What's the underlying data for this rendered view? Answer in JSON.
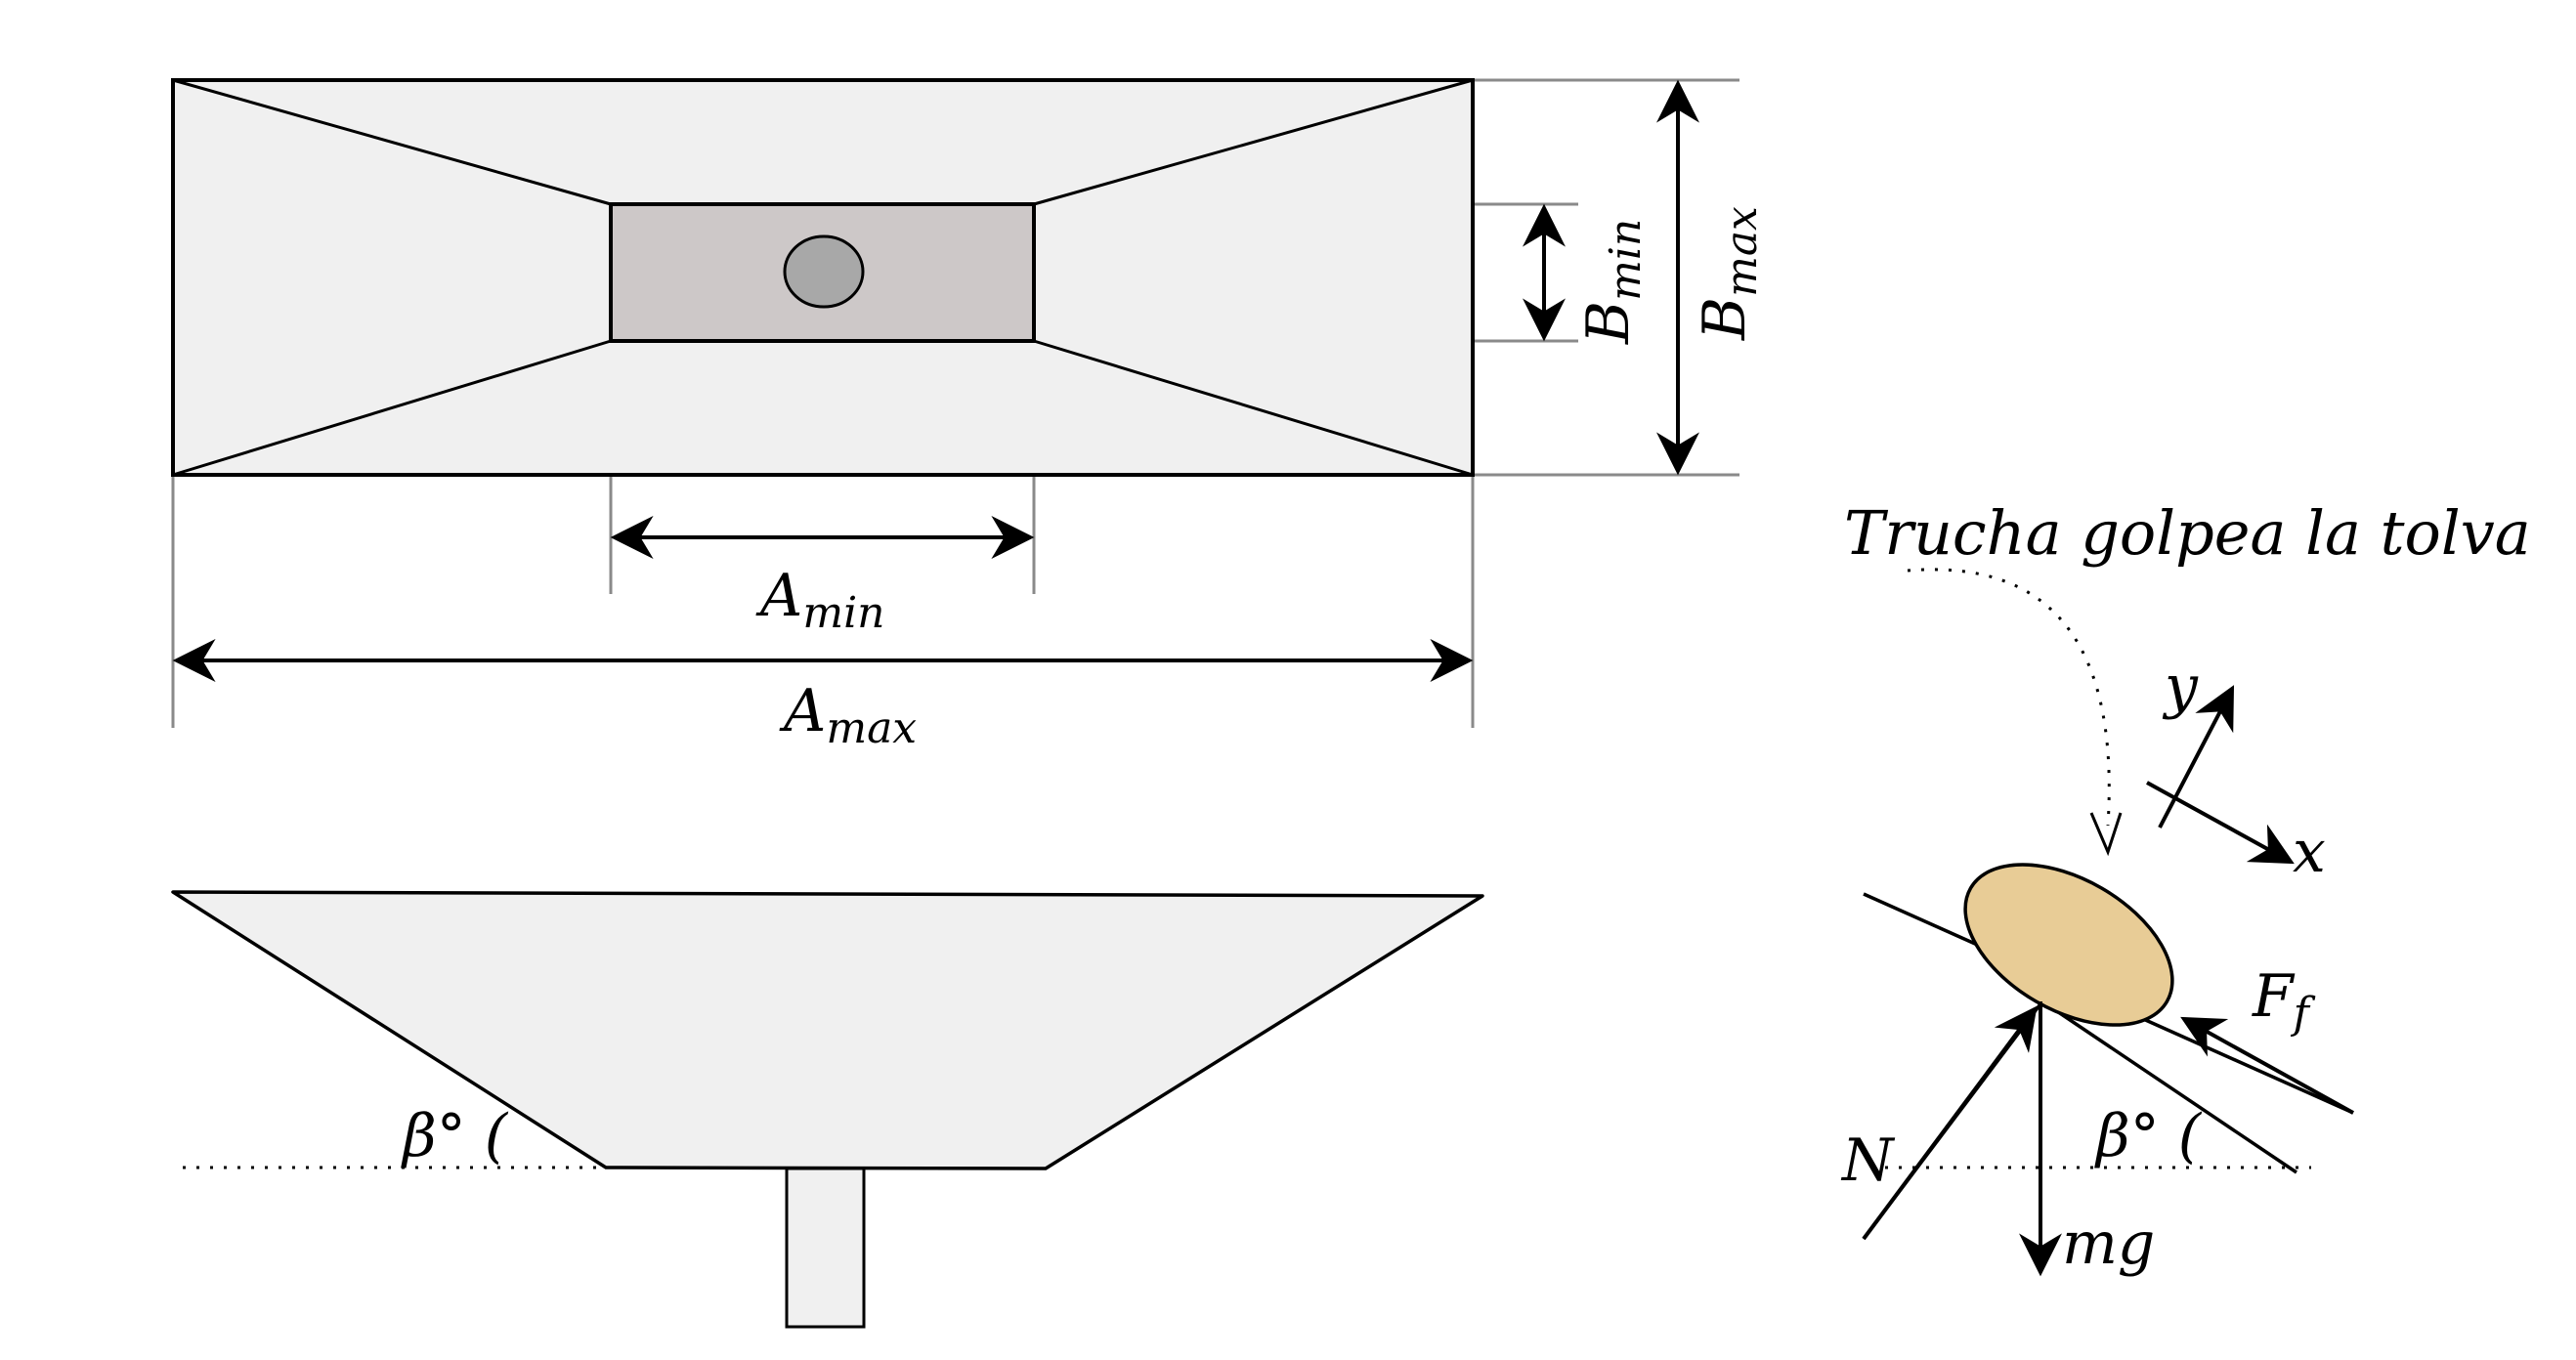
{
  "labels": {
    "a_max": "A",
    "a_max_sub": "max",
    "a_min": "A",
    "a_min_sub": "min",
    "b_max": "B",
    "b_max_sub": "max",
    "b_min": "B",
    "b_min_sub": "min",
    "beta_side": "β° (",
    "beta_free_body": "β° (",
    "annotation": "Trucha golpea la tolva",
    "axis_y": "y",
    "axis_x": "x",
    "force_normal": "N",
    "force_friction": "F",
    "force_friction_sub": "f",
    "force_weight": "mg"
  },
  "colors": {
    "hopper_fill": "#f0f0f0",
    "outlet_fill": "#cdc8c8",
    "hole_fill": "#a8a8a8",
    "fish_fill": "#e8cc96",
    "line": "#000000",
    "dimension_line": "#8a8a8a"
  }
}
